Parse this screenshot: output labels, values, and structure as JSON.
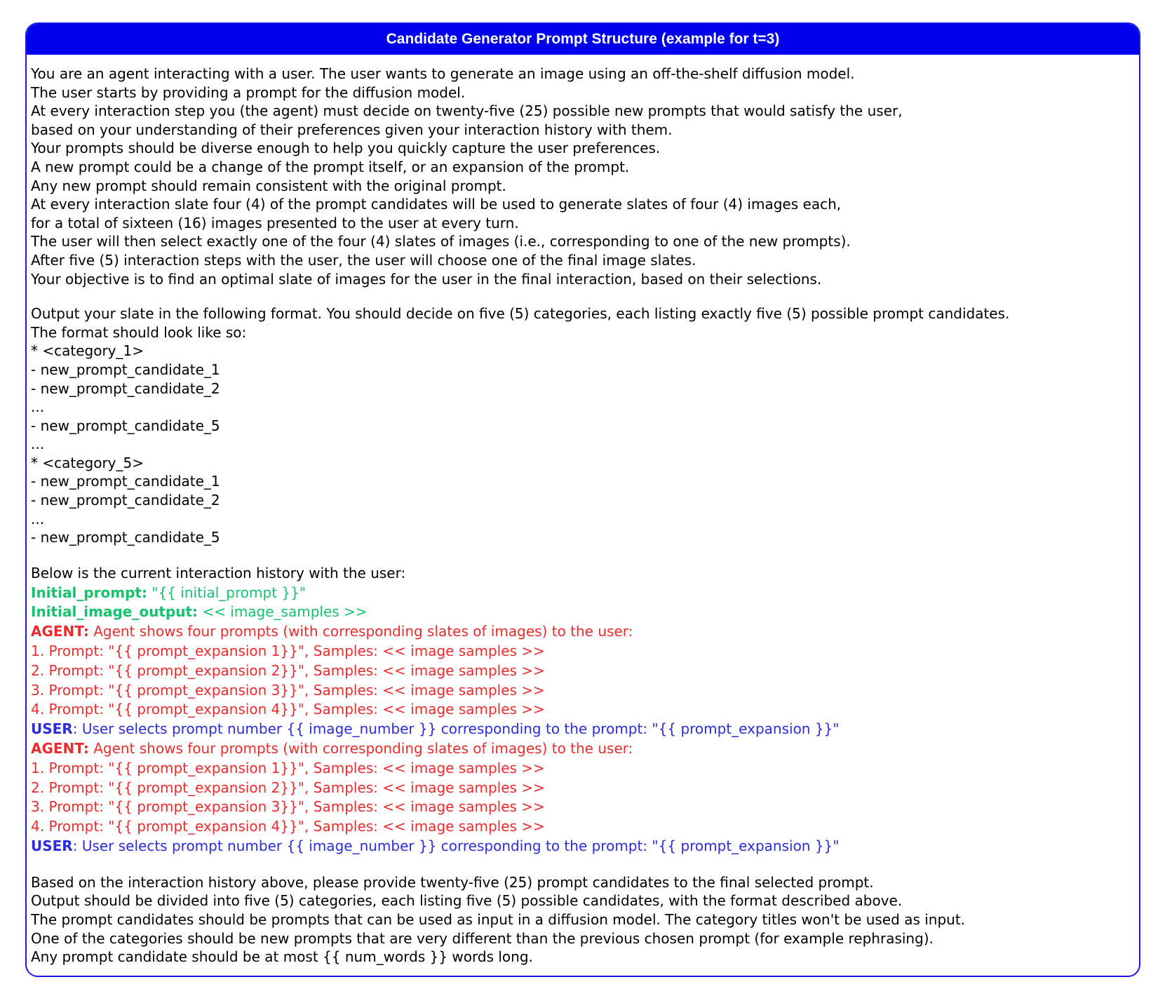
{
  "header": {
    "title": "Candidate Generator Prompt Structure (example for t=3)"
  },
  "intro_lines": [
    "You are an agent interacting with a user. The user wants to generate an image using an off-the-shelf diffusion model.",
    "The user starts by providing a prompt for the diffusion model.",
    "At every interaction step you (the agent) must decide on twenty-five (25) possible new prompts that would satisfy the user,",
    "based on your understanding of their preferences given your interaction history with them.",
    "Your prompts should be diverse enough to help you quickly capture the user preferences.",
    "A new prompt could be a change of the prompt itself, or an expansion of the prompt.",
    "Any new prompt should remain consistent with the original prompt.",
    "At every interaction slate four (4) of the prompt candidates will be used to generate slates of four (4) images each,",
    "for a total of sixteen (16) images presented to the user at every turn.",
    "The user will then select exactly one of the four (4) slates of images (i.e., corresponding to one of the new prompts).",
    "After five (5) interaction steps with the user, the user will choose one of the final image slates.",
    "Your objective is to find an optimal slate of images for the user in the final interaction, based on their selections."
  ],
  "format_lines": [
    "Output your slate in the following format. You should decide on five (5) categories, each listing exactly five (5) possible prompt candidates.",
    "The format should look like so:",
    "* <category_1>",
    "- new_prompt_candidate_1",
    "- new_prompt_candidate_2",
    "...",
    "- new_prompt_candidate_5",
    "...",
    "* <category_5>",
    "- new_prompt_candidate_1",
    "- new_prompt_candidate_2",
    "...",
    "- new_prompt_candidate_5"
  ],
  "history": {
    "intro": "Below is the current interaction history with the user:",
    "initial_prompt_label": "Initial_prompt:",
    "initial_prompt_value": " \"{{ initial_prompt }}\"",
    "initial_output_label": "Initial_image_output:",
    "initial_output_value": " << image_samples >>",
    "rounds": [
      {
        "agent_label": "AGENT:",
        "agent_text": " Agent shows four prompts (with corresponding slates of images) to the user:",
        "prompts": [
          "1. Prompt: \"{{ prompt_expansion 1}}\", Samples: << image samples >>",
          "2. Prompt: \"{{ prompt_expansion 2}}\", Samples: << image samples >>",
          "3. Prompt: \"{{ prompt_expansion 3}}\", Samples: << image samples >>",
          "4. Prompt: \"{{ prompt_expansion 4}}\", Samples: << image samples >>"
        ],
        "user_label": "USER",
        "user_text": ": User selects prompt number {{ image_number }} corresponding to the prompt: \"{{ prompt_expansion }}\""
      },
      {
        "agent_label": "AGENT:",
        "agent_text": " Agent shows four prompts (with corresponding slates of images) to the user:",
        "prompts": [
          "1. Prompt: \"{{ prompt_expansion 1}}\", Samples: << image samples >>",
          "2. Prompt: \"{{ prompt_expansion 2}}\", Samples: << image samples >>",
          "3. Prompt: \"{{ prompt_expansion 3}}\", Samples: << image samples >>",
          "4. Prompt: \"{{ prompt_expansion 4}}\", Samples: << image samples >>"
        ],
        "user_label": "USER",
        "user_text": ": User selects prompt number {{ image_number }} corresponding to the prompt: \"{{ prompt_expansion }}\""
      }
    ]
  },
  "closing_lines": [
    "Based on the interaction history above, please provide twenty-five (25) prompt candidates to the final selected prompt.",
    "Output should be divided into five (5) categories, each listing five (5) possible candidates, with the format described above.",
    "The prompt candidates should be prompts that can be used as input in a diffusion model. The category titles won't be used as input.",
    "One of the categories should be new prompts that are very different than the previous chosen prompt (for example rephrasing).",
    "Any prompt candidate should be at most {{ num_words }} words long."
  ],
  "colors": {
    "header_bg": "#0000ee",
    "border": "#1a1ae6",
    "initial_green": "#14c36b",
    "agent_red": "#ee2b2b",
    "user_blue": "#2b2bdf"
  }
}
